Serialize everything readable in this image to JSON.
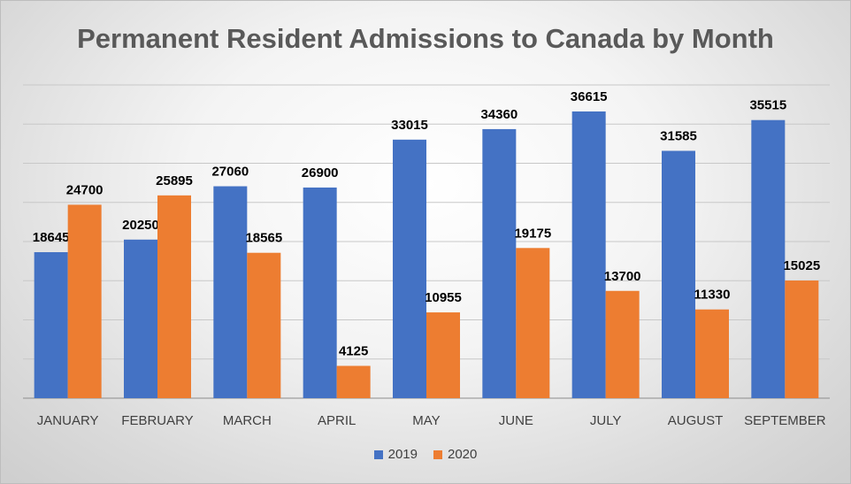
{
  "chart_data": {
    "type": "bar",
    "title": "Permanent Resident Admissions to Canada by Month",
    "categories": [
      "JANUARY",
      "FEBRUARY",
      "MARCH",
      "APRIL",
      "MAY",
      "JUNE",
      "JULY",
      "AUGUST",
      "SEPTEMBER"
    ],
    "series": [
      {
        "name": "2019",
        "color": "#4472c4",
        "values": [
          18645,
          20250,
          27060,
          26900,
          33015,
          34360,
          36615,
          31585,
          35515
        ]
      },
      {
        "name": "2020",
        "color": "#ed7d31",
        "values": [
          24700,
          25895,
          18565,
          4125,
          10955,
          19175,
          13700,
          11330,
          15025
        ]
      }
    ],
    "ylim": [
      0,
      40000
    ],
    "ygrid_step": 5000,
    "y_tick_labels_visible": false,
    "grid": true,
    "data_labels": true,
    "legend_position": "bottom"
  }
}
